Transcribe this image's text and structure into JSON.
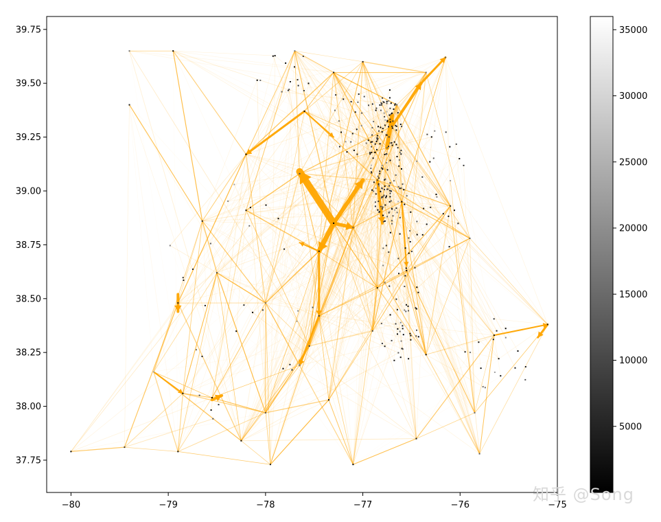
{
  "chart_data": {
    "type": "scatter",
    "description_free": true,
    "xlim": [
      -80.25,
      -75.0
    ],
    "ylim": [
      37.6,
      39.81
    ],
    "x_ticks": [
      -80,
      -79,
      -78,
      -77,
      -76,
      -75
    ],
    "x_tick_labels": [
      "−80",
      "−79",
      "−78",
      "−77",
      "−76",
      "−75"
    ],
    "y_ticks": [
      37.75,
      38.0,
      38.25,
      38.5,
      38.75,
      39.0,
      39.25,
      39.5,
      39.75
    ],
    "y_tick_labels": [
      "37.75",
      "38.00",
      "38.25",
      "38.50",
      "38.75",
      "39.00",
      "39.25",
      "39.50",
      "39.75"
    ],
    "grid": false,
    "flow_color": "#FFA500",
    "node_color_scale": "gray",
    "colorbar": {
      "range": [
        0,
        36000
      ],
      "ticks": [
        5000,
        10000,
        15000,
        20000,
        25000,
        30000,
        35000
      ],
      "tick_labels": [
        "5000",
        "10000",
        "15000",
        "20000",
        "25000",
        "30000",
        "35000"
      ]
    },
    "hubs": [
      {
        "x": -77.3,
        "y": 38.85
      },
      {
        "x": -76.75,
        "y": 39.2
      },
      {
        "x": -76.7,
        "y": 39.3
      },
      {
        "x": -77.6,
        "y": 39.37
      },
      {
        "x": -77.65,
        "y": 39.08
      },
      {
        "x": -77.45,
        "y": 38.72
      },
      {
        "x": -77.1,
        "y": 38.83
      },
      {
        "x": -76.65,
        "y": 39.4
      },
      {
        "x": -76.85,
        "y": 39.05
      },
      {
        "x": -77.45,
        "y": 38.42
      },
      {
        "x": -77.65,
        "y": 38.19
      },
      {
        "x": -78.55,
        "y": 38.04
      },
      {
        "x": -78.9,
        "y": 38.48
      },
      {
        "x": -79.15,
        "y": 38.16
      },
      {
        "x": -79.45,
        "y": 37.81
      },
      {
        "x": -78.2,
        "y": 39.17
      },
      {
        "x": -75.1,
        "y": 38.38
      },
      {
        "x": -75.65,
        "y": 38.33
      },
      {
        "x": -77.35,
        "y": 38.03
      },
      {
        "x": -77.0,
        "y": 39.6
      },
      {
        "x": -76.15,
        "y": 39.62
      },
      {
        "x": -76.35,
        "y": 38.24
      },
      {
        "x": -76.55,
        "y": 38.63
      },
      {
        "x": -77.7,
        "y": 39.65
      },
      {
        "x": -78.65,
        "y": 38.86
      },
      {
        "x": -78.0,
        "y": 38.48
      },
      {
        "x": -78.2,
        "y": 38.91
      },
      {
        "x": -77.95,
        "y": 37.73
      },
      {
        "x": -78.0,
        "y": 37.97
      },
      {
        "x": -78.5,
        "y": 38.62
      },
      {
        "x": -77.55,
        "y": 38.28
      },
      {
        "x": -76.9,
        "y": 38.35
      },
      {
        "x": -76.85,
        "y": 38.55
      },
      {
        "x": -76.6,
        "y": 38.95
      },
      {
        "x": -75.9,
        "y": 38.78
      },
      {
        "x": -76.1,
        "y": 38.93
      },
      {
        "x": -75.85,
        "y": 37.97
      },
      {
        "x": -75.8,
        "y": 37.78
      },
      {
        "x": -77.1,
        "y": 37.73
      },
      {
        "x": -76.45,
        "y": 37.85
      },
      {
        "x": -78.9,
        "y": 37.79
      },
      {
        "x": -80.0,
        "y": 37.79
      },
      {
        "x": -78.25,
        "y": 37.84
      },
      {
        "x": -78.85,
        "y": 38.06
      },
      {
        "x": -79.4,
        "y": 39.4
      },
      {
        "x": -79.4,
        "y": 39.65
      },
      {
        "x": -78.95,
        "y": 39.65
      },
      {
        "x": -77.3,
        "y": 39.55
      },
      {
        "x": -76.35,
        "y": 39.55
      }
    ],
    "major_flows": [
      {
        "from": [
          -77.3,
          38.85
        ],
        "to": [
          -77.65,
          39.09
        ],
        "weight": 10
      },
      {
        "from": [
          -77.3,
          38.85
        ],
        "to": [
          -77.45,
          38.72
        ],
        "weight": 7
      },
      {
        "from": [
          -77.3,
          38.85
        ],
        "to": [
          -77.1,
          38.83
        ],
        "weight": 5
      },
      {
        "from": [
          -77.3,
          38.85
        ],
        "to": [
          -77.0,
          39.05
        ],
        "weight": 6
      },
      {
        "from": [
          -77.6,
          39.37
        ],
        "to": [
          -78.2,
          39.17
        ],
        "weight": 3
      },
      {
        "from": [
          -77.6,
          39.37
        ],
        "to": [
          -77.3,
          39.25
        ],
        "weight": 2
      },
      {
        "from": [
          -77.45,
          38.72
        ],
        "to": [
          -77.45,
          38.42
        ],
        "weight": 3
      },
      {
        "from": [
          -77.45,
          38.42
        ],
        "to": [
          -77.65,
          38.19
        ],
        "weight": 3
      },
      {
        "from": [
          -78.9,
          38.52
        ],
        "to": [
          -78.9,
          38.44
        ],
        "weight": 4
      },
      {
        "from": [
          -78.55,
          38.03
        ],
        "to": [
          -78.45,
          38.05
        ],
        "weight": 4
      },
      {
        "from": [
          -76.75,
          39.2
        ],
        "to": [
          -76.7,
          39.35
        ],
        "weight": 6
      },
      {
        "from": [
          -76.7,
          39.3
        ],
        "to": [
          -76.4,
          39.5
        ],
        "weight": 4
      },
      {
        "from": [
          -76.4,
          39.5
        ],
        "to": [
          -76.15,
          39.62
        ],
        "weight": 3
      },
      {
        "from": [
          -75.1,
          38.38
        ],
        "to": [
          -75.2,
          38.32
        ],
        "weight": 3
      },
      {
        "from": [
          -75.65,
          38.33
        ],
        "to": [
          -75.1,
          38.38
        ],
        "weight": 2
      },
      {
        "from": [
          -77.45,
          38.72
        ],
        "to": [
          -77.65,
          38.76
        ],
        "weight": 2
      },
      {
        "from": [
          -76.85,
          39.05
        ],
        "to": [
          -76.8,
          38.85
        ],
        "weight": 4
      },
      {
        "from": [
          -76.6,
          38.95
        ],
        "to": [
          -76.55,
          38.65
        ],
        "weight": 2
      },
      {
        "from": [
          -79.15,
          38.16
        ],
        "to": [
          -78.85,
          38.06
        ],
        "weight": 2
      }
    ]
  },
  "watermark": "知乎 @Song"
}
